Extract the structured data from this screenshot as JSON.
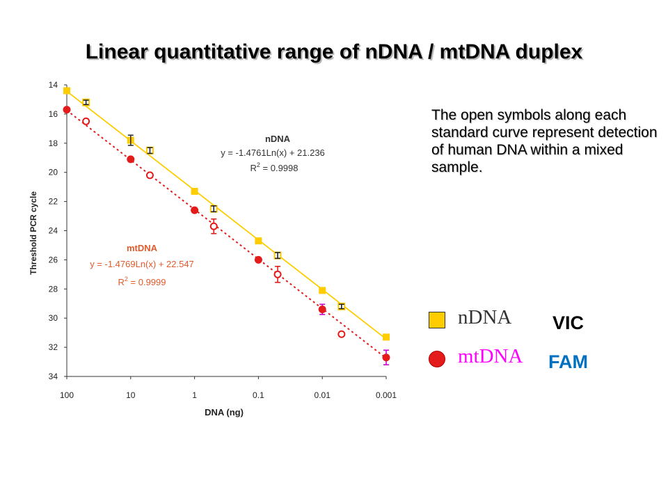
{
  "title": "Linear quantitative range of nDNA / mtDNA duplex",
  "note": "The open symbols along each standard curve represent detection of human DNA within a mixed sample.",
  "legend": {
    "items": [
      {
        "label": "nDNA",
        "dye": "VIC",
        "shape": "square",
        "color": "#FFCC00",
        "label_color": "#333333",
        "dye_color": "#000000"
      },
      {
        "label": "mtDNA",
        "dye": "FAM",
        "shape": "circle",
        "color": "#E31B1B",
        "label_color": "#FF00FF",
        "dye_color": "#0070C0"
      }
    ]
  },
  "chart_data": {
    "type": "scatter",
    "xlabel": "DNA (ng)",
    "ylabel": "Threshold PCR cycle",
    "x_scale": "log",
    "x_reversed": true,
    "xlim": [
      100,
      0.001
    ],
    "x_ticks": [
      "100",
      "10",
      "1",
      "0.1",
      "0.01",
      "0.001"
    ],
    "y_reversed": true,
    "ylim": [
      14,
      34
    ],
    "y_ticks": [
      "14",
      "16",
      "18",
      "20",
      "22",
      "24",
      "26",
      "28",
      "30",
      "32",
      "34"
    ],
    "grid": false,
    "series": [
      {
        "name": "nDNA",
        "marker": "square",
        "color": "#FFCC00",
        "fit": {
          "slope": -1.4761,
          "intercept": 21.236,
          "equation": "y = -1.4761Ln(x) + 21.236",
          "r2_label": "R",
          "r2_exp": "2",
          "r2_value": " = 0.9998",
          "line": "solid",
          "label_color": "#333333"
        },
        "points": [
          {
            "x": 100,
            "y": 14.4
          },
          {
            "x": 10,
            "y": 17.8
          },
          {
            "x": 1,
            "y": 21.3
          },
          {
            "x": 0.1,
            "y": 24.7
          },
          {
            "x": 0.01,
            "y": 28.1
          },
          {
            "x": 0.001,
            "y": 31.3
          }
        ],
        "open_points": [
          {
            "x": 50,
            "y": 15.2,
            "err": 0.15
          },
          {
            "x": 5,
            "y": 18.5,
            "err": 0.2
          },
          {
            "x": 0.5,
            "y": 22.5,
            "err": 0.2
          },
          {
            "x": 0.05,
            "y": 25.7,
            "err": 0.2
          },
          {
            "x": 0.005,
            "y": 29.2,
            "err": 0.15
          }
        ],
        "err_points": [
          {
            "x": 10,
            "y": 17.8,
            "err": 0.35
          }
        ]
      },
      {
        "name": "mtDNA",
        "marker": "circle",
        "color": "#E31B1B",
        "fit": {
          "slope": -1.4769,
          "intercept": 22.547,
          "equation": "y = -1.4769Ln(x) + 22.547",
          "r2_label": "R",
          "r2_exp": "2",
          "r2_value": " = 0.9999",
          "line": "dotted",
          "label_color": "#E05A2B"
        },
        "points": [
          {
            "x": 100,
            "y": 15.7
          },
          {
            "x": 10,
            "y": 19.1
          },
          {
            "x": 1,
            "y": 22.6
          },
          {
            "x": 0.1,
            "y": 26.0
          },
          {
            "x": 0.01,
            "y": 29.4,
            "err": 0.35,
            "err_color": "#CC00CC"
          },
          {
            "x": 0.001,
            "y": 32.7,
            "err": 0.5,
            "err_color": "#CC00CC"
          }
        ],
        "open_points": [
          {
            "x": 50,
            "y": 16.5,
            "err": 0.15
          },
          {
            "x": 5,
            "y": 20.2,
            "err": 0.15
          },
          {
            "x": 0.5,
            "y": 23.7,
            "err": 0.5
          },
          {
            "x": 0.05,
            "y": 27.0,
            "err": 0.55
          },
          {
            "x": 0.005,
            "y": 31.1,
            "err": 0.15
          }
        ]
      }
    ]
  }
}
